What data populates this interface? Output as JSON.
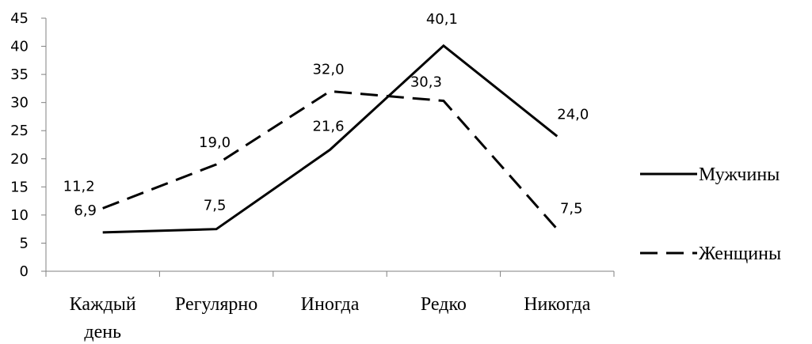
{
  "chart_data": {
    "type": "line",
    "categories": [
      [
        "Каждый",
        "день"
      ],
      [
        "Регулярно"
      ],
      [
        "Иногда"
      ],
      [
        "Редко"
      ],
      [
        "Никогда"
      ]
    ],
    "ylim": [
      0,
      45
    ],
    "yticks": [
      0,
      5,
      10,
      15,
      20,
      25,
      30,
      35,
      40,
      45
    ],
    "legend_position": "right",
    "series": [
      {
        "name": "Мужчины",
        "values": [
          6.9,
          7.5,
          21.6,
          40.1,
          24.0
        ],
        "labels": [
          "6,9",
          "7,5",
          "21,6",
          "40,1",
          "24,0"
        ],
        "style": "solid",
        "color": "#000000"
      },
      {
        "name": "Женщины",
        "values": [
          11.2,
          19.0,
          32.0,
          30.3,
          7.5
        ],
        "labels": [
          "11,2",
          "19,0",
          "32,0",
          "30,3",
          "7,5"
        ],
        "style": "dashed",
        "color": "#000000"
      }
    ]
  }
}
